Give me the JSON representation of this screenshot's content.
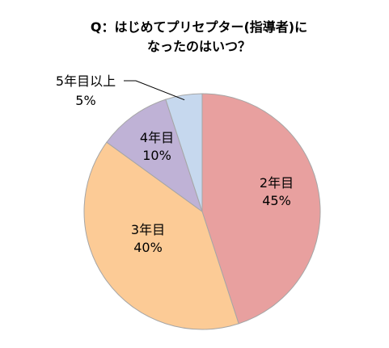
{
  "chart_data": {
    "type": "pie",
    "title": [
      "Q：はじめてプリセプター(指導者)に",
      "なったのはいつ？"
    ],
    "categories": [
      "2年目",
      "3年目",
      "4年目",
      "5年目以上"
    ],
    "values": [
      45,
      40,
      10,
      5
    ],
    "value_labels": [
      "45%",
      "40%",
      "10%",
      "5%"
    ],
    "colors": [
      "#E8A09F",
      "#FCCB96",
      "#BFB2D6",
      "#C6D8EE"
    ],
    "border_color": "#A6A6A6"
  }
}
